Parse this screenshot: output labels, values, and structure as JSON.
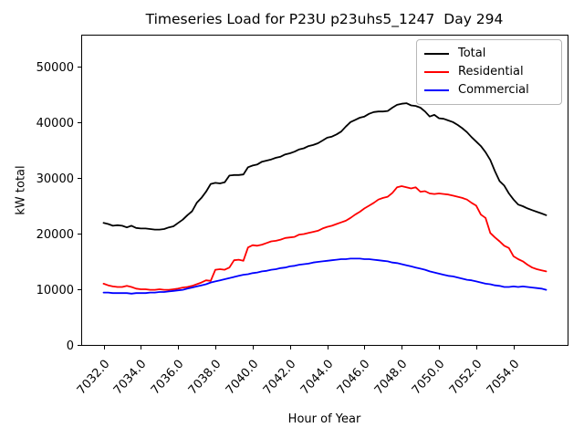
{
  "figure": {
    "background": "#ffffff"
  },
  "chart_data": {
    "type": "line",
    "title": "Timeseries Load for P23U p23uhs5_1247  Day 294",
    "xlabel": "Hour of Year",
    "ylabel": "kW total",
    "grid": false,
    "legend_position": "upper right",
    "xlim": [
      7030.8,
      7056.9
    ],
    "ylim": [
      0,
      55700
    ],
    "xticks": [
      7032,
      7034,
      7036,
      7038,
      7040,
      7042,
      7044,
      7046,
      7048,
      7050,
      7052,
      7054
    ],
    "xtick_labels": [
      "7032.0",
      "7034.0",
      "7036.0",
      "7038.0",
      "7040.0",
      "7042.0",
      "7044.0",
      "7046.0",
      "7048.0",
      "7050.0",
      "7052.0",
      "7054.0"
    ],
    "yticks": [
      0,
      10000,
      20000,
      30000,
      40000,
      50000
    ],
    "ytick_labels": [
      "0",
      "10000",
      "20000",
      "30000",
      "40000",
      "50000"
    ],
    "x_start": 7032.0,
    "x_step": 0.25,
    "n_points": 96,
    "series": [
      {
        "name": "Total",
        "color": "#000000",
        "values": [
          21900,
          21700,
          21400,
          21500,
          21400,
          21100,
          21400,
          21000,
          20900,
          20900,
          20800,
          20700,
          20700,
          20800,
          21100,
          21300,
          21900,
          22500,
          23300,
          24000,
          25500,
          26400,
          27500,
          28900,
          29100,
          29000,
          29200,
          30400,
          30500,
          30500,
          30600,
          31900,
          32200,
          32400,
          32900,
          33100,
          33300,
          33600,
          33800,
          34200,
          34400,
          34700,
          35100,
          35300,
          35700,
          35900,
          36200,
          36700,
          37200,
          37400,
          37800,
          38300,
          39200,
          40000,
          40400,
          40800,
          41000,
          41500,
          41800,
          41900,
          41900,
          42000,
          42600,
          43100,
          43300,
          43400,
          43000,
          42900,
          42600,
          41900,
          41000,
          41300,
          40700,
          40600,
          40300,
          40000,
          39500,
          38900,
          38200,
          37300,
          36500,
          35700,
          34600,
          33200,
          31200,
          29400,
          28600,
          27200,
          26100,
          25200,
          24900,
          24500,
          24200,
          23900,
          23600,
          23300
        ]
      },
      {
        "name": "Residential",
        "color": "#ff0000",
        "values": [
          11000,
          10700,
          10500,
          10400,
          10400,
          10600,
          10400,
          10100,
          10000,
          10000,
          9900,
          9900,
          10000,
          9900,
          9900,
          10000,
          10100,
          10300,
          10400,
          10600,
          10900,
          11200,
          11600,
          11500,
          13500,
          13600,
          13500,
          13900,
          15200,
          15300,
          15100,
          17500,
          17900,
          17800,
          18000,
          18300,
          18600,
          18700,
          18900,
          19200,
          19300,
          19400,
          19800,
          19900,
          20100,
          20300,
          20500,
          20900,
          21200,
          21400,
          21700,
          22000,
          22300,
          22800,
          23400,
          23900,
          24500,
          25000,
          25500,
          26100,
          26400,
          26600,
          27300,
          28300,
          28500,
          28300,
          28100,
          28300,
          27500,
          27600,
          27200,
          27100,
          27200,
          27100,
          27000,
          26800,
          26600,
          26400,
          26100,
          25500,
          25000,
          23400,
          22800,
          20100,
          19300,
          18600,
          17800,
          17400,
          15900,
          15400,
          15000,
          14400,
          13900,
          13600,
          13400,
          13200
        ]
      },
      {
        "name": "Commercial",
        "color": "#0000ff",
        "values": [
          9400,
          9400,
          9300,
          9300,
          9300,
          9300,
          9200,
          9300,
          9300,
          9300,
          9400,
          9400,
          9500,
          9500,
          9600,
          9700,
          9800,
          9900,
          10100,
          10300,
          10500,
          10700,
          10900,
          11200,
          11400,
          11600,
          11800,
          12000,
          12200,
          12400,
          12600,
          12700,
          12900,
          13000,
          13200,
          13300,
          13500,
          13600,
          13800,
          13900,
          14100,
          14200,
          14400,
          14500,
          14600,
          14800,
          14900,
          15000,
          15100,
          15200,
          15300,
          15400,
          15400,
          15500,
          15500,
          15500,
          15400,
          15400,
          15300,
          15200,
          15100,
          15000,
          14800,
          14700,
          14500,
          14300,
          14100,
          13900,
          13700,
          13500,
          13200,
          13000,
          12800,
          12600,
          12400,
          12300,
          12100,
          11900,
          11700,
          11600,
          11400,
          11200,
          11000,
          10900,
          10700,
          10600,
          10400,
          10400,
          10500,
          10400,
          10500,
          10400,
          10300,
          10200,
          10100,
          9900
        ]
      }
    ]
  }
}
